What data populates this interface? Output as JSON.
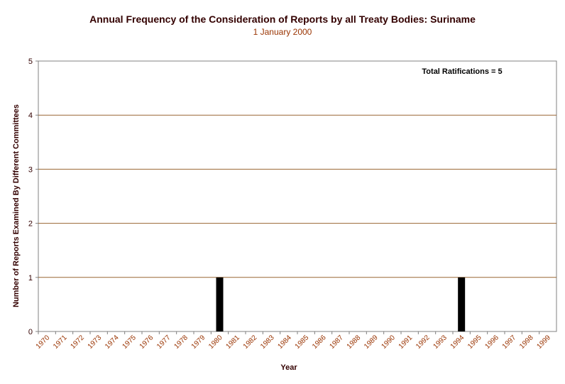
{
  "chart_data": {
    "type": "bar",
    "title": "Annual Frequency of the Consideration of Reports by all Treaty Bodies: Suriname",
    "subtitle": "1 January 2000",
    "xlabel": "Year",
    "ylabel": "Number of Reports Examined By Different Committees",
    "annotation": "Total Ratifications = 5",
    "categories": [
      "1970",
      "1971",
      "1972",
      "1973",
      "1974",
      "1975",
      "1976",
      "1977",
      "1978",
      "1979",
      "1980",
      "1981",
      "1982",
      "1983",
      "1984",
      "1985",
      "1986",
      "1987",
      "1988",
      "1989",
      "1990",
      "1991",
      "1992",
      "1993",
      "1994",
      "1995",
      "1996",
      "1997",
      "1998",
      "1999"
    ],
    "values": [
      0,
      0,
      0,
      0,
      0,
      0,
      0,
      0,
      0,
      0,
      1,
      0,
      0,
      0,
      0,
      0,
      0,
      0,
      0,
      0,
      0,
      0,
      0,
      0,
      1,
      0,
      0,
      0,
      0,
      0
    ],
    "ylim": [
      0,
      5
    ],
    "yticks": [
      "0",
      "1",
      "2",
      "3",
      "4",
      "5"
    ],
    "grid": true,
    "colors": {
      "bar": "#000000",
      "grid": "#996633",
      "axis": "#808080",
      "plot_border": "#808080"
    }
  }
}
